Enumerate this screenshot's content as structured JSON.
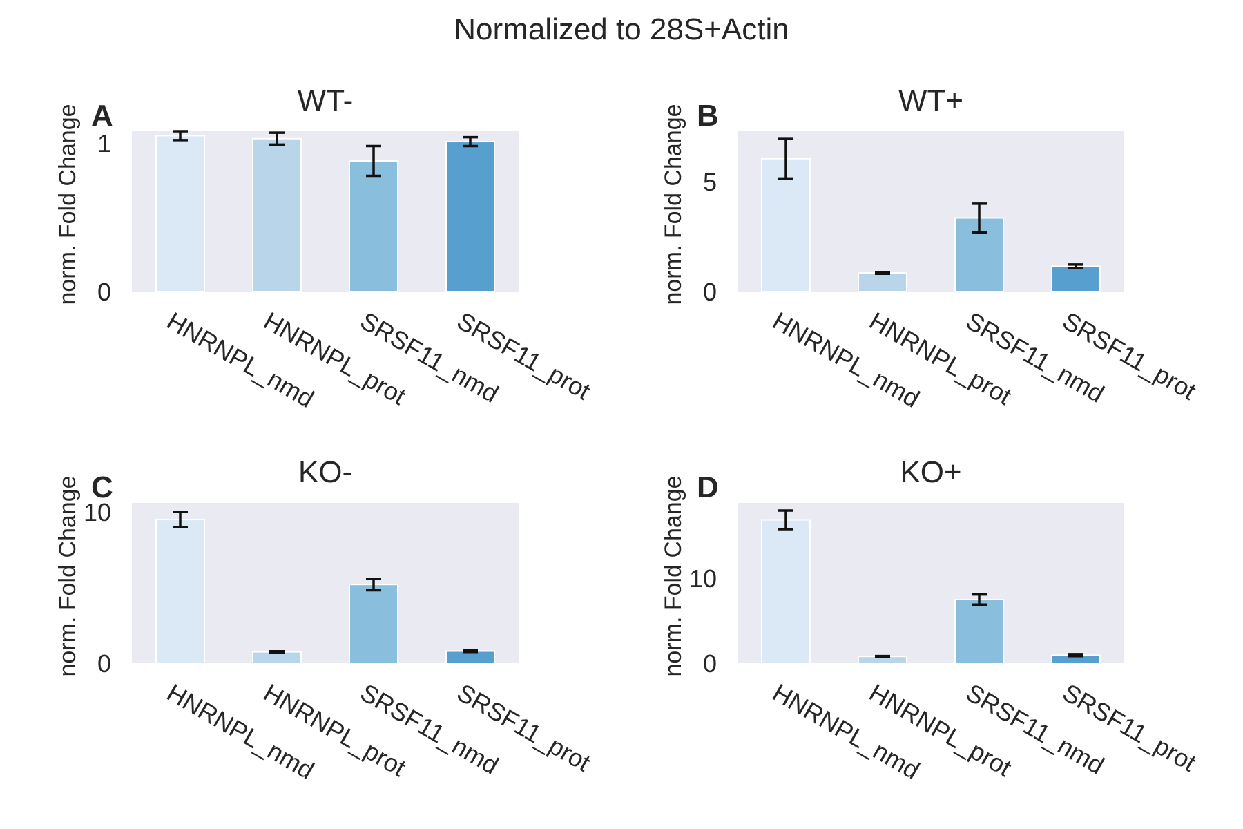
{
  "figure": {
    "suptitle": "Normalized to 28S+Actin"
  },
  "colors": {
    "panel_bg": "#eaeaf2",
    "bars": [
      "#dbe8f5",
      "#b8d5ea",
      "#89bedc",
      "#569fcf"
    ],
    "error": "#111111",
    "bar_edge": "#ffffff"
  },
  "chart_data": [
    {
      "type": "bar",
      "letter": "A",
      "title": "WT-",
      "ylabel": "norm. Fold Change",
      "categories": [
        "HNRNPL_nmd",
        "HNRNPL_prot",
        "SRSF11_nmd",
        "SRSF11_prot"
      ],
      "values": [
        1.05,
        1.03,
        0.88,
        1.01
      ],
      "errors": [
        0.03,
        0.04,
        0.1,
        0.03
      ],
      "ylim": [
        0,
        1.08
      ],
      "yticks": [
        0,
        1
      ],
      "grid": false
    },
    {
      "type": "bar",
      "letter": "B",
      "title": "WT+",
      "ylabel": "norm. Fold Change",
      "categories": [
        "HNRNPL_nmd",
        "HNRNPL_prot",
        "SRSF11_nmd",
        "SRSF11_prot"
      ],
      "values": [
        6.05,
        0.85,
        3.35,
        1.15
      ],
      "errors": [
        0.9,
        0.04,
        0.65,
        0.08
      ],
      "ylim": [
        0,
        7.3
      ],
      "yticks": [
        0,
        5
      ],
      "grid": false
    },
    {
      "type": "bar",
      "letter": "C",
      "title": "KO-",
      "ylabel": "norm. Fold Change",
      "categories": [
        "HNRNPL_nmd",
        "HNRNPL_prot",
        "SRSF11_nmd",
        "SRSF11_prot"
      ],
      "values": [
        9.5,
        0.75,
        5.2,
        0.8
      ],
      "errors": [
        0.5,
        0.04,
        0.38,
        0.06
      ],
      "ylim": [
        0,
        10.6
      ],
      "yticks": [
        0,
        10
      ],
      "grid": false
    },
    {
      "type": "bar",
      "letter": "D",
      "title": "KO+",
      "ylabel": "norm. Fold Change",
      "categories": [
        "HNRNPL_nmd",
        "HNRNPL_prot",
        "SRSF11_nmd",
        "SRSF11_prot"
      ],
      "values": [
        16.9,
        0.8,
        7.5,
        0.95
      ],
      "errors": [
        1.1,
        0.05,
        0.6,
        0.12
      ],
      "ylim": [
        0,
        18.9
      ],
      "yticks": [
        0,
        10
      ],
      "grid": false
    }
  ]
}
